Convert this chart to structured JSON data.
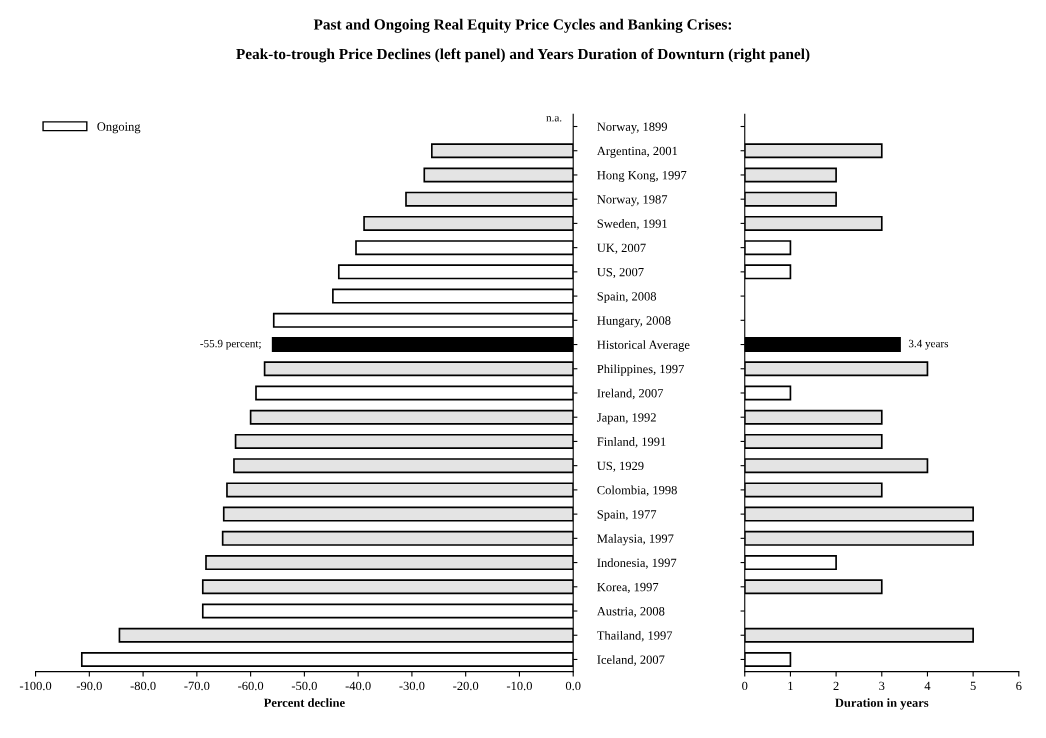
{
  "chart_data": [
    {
      "type": "bar",
      "orientation": "horizontal",
      "title": "Past and Ongoing Real Equity Price Cycles and Banking Crises:",
      "subtitle": "Peak-to-trough Price Declines (left panel) and Years Duration of Downturn (right panel)",
      "xlabel": "Percent decline",
      "categories": [
        "Norway, 1899",
        "Argentina, 2001",
        "Hong Kong, 1997",
        "Norway, 1987",
        "Sweden, 1991",
        "UK, 2007",
        "US, 2007",
        "Spain, 2008",
        "Hungary, 2008",
        "Historical Average",
        "Philippines, 1997",
        "Ireland, 2007",
        "Japan, 1992",
        "Finland, 1991",
        "US, 1929",
        "Colombia, 1998",
        "Spain, 1977",
        "Malaysia, 1997",
        "Indonesia, 1997",
        "Korea, 1997",
        "Austria, 2008",
        "Thailand, 1997",
        "Iceland, 2007"
      ],
      "series": [
        {
          "color": "#e4e4e4",
          "values": [
            null,
            -26.3,
            -27.7,
            -31.1,
            -38.9,
            null,
            null,
            null,
            null,
            null,
            -57.4,
            null,
            -60.0,
            -62.8,
            -63.1,
            -64.4,
            -65.0,
            -65.2,
            -68.3,
            -68.9,
            null,
            -84.4,
            null
          ]
        },
        {
          "name": "Ongoing",
          "color": "#ffffff",
          "values": [
            null,
            null,
            null,
            null,
            null,
            -40.4,
            -43.6,
            -44.7,
            -55.7,
            null,
            null,
            -59.0,
            null,
            null,
            null,
            null,
            null,
            null,
            null,
            null,
            -68.9,
            null,
            -91.4
          ]
        },
        {
          "color": "#000000",
          "values": [
            null,
            null,
            null,
            null,
            null,
            null,
            null,
            null,
            null,
            -55.9,
            null,
            null,
            null,
            null,
            null,
            null,
            null,
            null,
            null,
            null,
            null,
            null,
            null
          ]
        }
      ],
      "xlim": [
        -100,
        0
      ],
      "xticks": [
        {
          "value": -100,
          "label": "-100.0"
        },
        {
          "value": -90,
          "label": "-90.0"
        },
        {
          "value": -80,
          "label": "-80.0"
        },
        {
          "value": -70,
          "label": "-70.0"
        },
        {
          "value": -60,
          "label": "-60.0"
        },
        {
          "value": -50,
          "label": "-50.0"
        },
        {
          "value": -40,
          "label": "-40.0"
        },
        {
          "value": -30,
          "label": "-30.0"
        },
        {
          "value": -20,
          "label": "-20.0"
        },
        {
          "value": -10,
          "label": "-10.0"
        },
        {
          "value": 0,
          "label": "0.0"
        }
      ],
      "annotations": [
        "n.a.",
        {
          "text": "-55.9 percent;",
          "x": -55.9,
          "y": "Historical Average"
        }
      ],
      "legend": "top left",
      "grid": false
    },
    {
      "type": "bar",
      "orientation": "horizontal",
      "xlabel": "Duration in years",
      "categories": [
        "Norway, 1899",
        "Argentina, 2001",
        "Hong Kong, 1997",
        "Norway, 1987",
        "Sweden, 1991",
        "UK, 2007",
        "US, 2007",
        "Spain, 2008",
        "Hungary, 2008",
        "Historical Average",
        "Philippines, 1997",
        "Ireland, 2007",
        "Japan, 1992",
        "Finland, 1991",
        "US, 1929",
        "Colombia, 1998",
        "Spain, 1977",
        "Malaysia, 1997",
        "Indonesia, 1997",
        "Korea, 1997",
        "Austria, 2008",
        "Thailand, 1997",
        "Iceland, 2007"
      ],
      "values": [
        null,
        3,
        2,
        2,
        3,
        1,
        1,
        null,
        null,
        3.4,
        4,
        1,
        3,
        3,
        4,
        3,
        5,
        5,
        2,
        3,
        null,
        5,
        1
      ],
      "colors": [
        "#ffffff",
        "#e4e4e4",
        "#e4e4e4",
        "#e4e4e4",
        "#e4e4e4",
        "#ffffff",
        "#ffffff",
        "#ffffff",
        "#ffffff",
        "#000000",
        "#e4e4e4",
        "#ffffff",
        "#e4e4e4",
        "#e4e4e4",
        "#e4e4e4",
        "#e4e4e4",
        "#e4e4e4",
        "#e4e4e4",
        "#ffffff",
        "#e4e4e4",
        "#ffffff",
        "#e4e4e4",
        "#ffffff"
      ],
      "xlim": [
        0,
        6
      ],
      "xticks": [
        0,
        1,
        2,
        3,
        4,
        5,
        6
      ],
      "annotations": [
        {
          "text": "3.4 years",
          "x": 3.4,
          "y": "Historical Average"
        }
      ],
      "tick_labels": "x",
      "grid": false
    }
  ]
}
